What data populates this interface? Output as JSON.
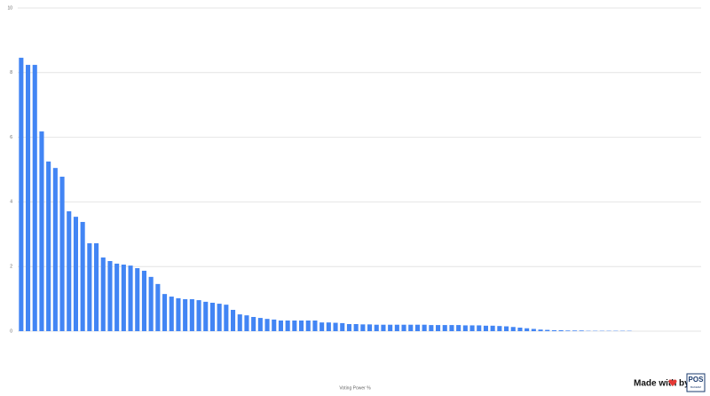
{
  "chart_data": {
    "type": "bar",
    "x_label": "Voting Power %",
    "categories": [
      null,
      null,
      null,
      null,
      null,
      null,
      null,
      null,
      null,
      null,
      null,
      null,
      null,
      null,
      null,
      null,
      null,
      null,
      null,
      null,
      null,
      null,
      null,
      null,
      null,
      null,
      null,
      null,
      null,
      null,
      null,
      null,
      null,
      null,
      null,
      null,
      null,
      null,
      null,
      null,
      null,
      null,
      null,
      null,
      null,
      null,
      null,
      null,
      null,
      null,
      null,
      null,
      null,
      null,
      null,
      null,
      null,
      null,
      null,
      null,
      null,
      null,
      null,
      null,
      null,
      null,
      null,
      null,
      null,
      null,
      null,
      null,
      null,
      null,
      null,
      null,
      null,
      null,
      null,
      null,
      null,
      null,
      null,
      null,
      null,
      null,
      null,
      null,
      null,
      null,
      null,
      null,
      null,
      null,
      null,
      null,
      null,
      null,
      null,
      null
    ],
    "values": [
      8.46,
      8.24,
      8.24,
      6.18,
      5.25,
      5.05,
      4.78,
      3.71,
      3.54,
      3.38,
      2.72,
      2.72,
      2.28,
      2.17,
      2.09,
      2.06,
      2.03,
      1.95,
      1.87,
      1.68,
      1.46,
      1.15,
      1.07,
      1.02,
      0.99,
      0.99,
      0.96,
      0.91,
      0.88,
      0.85,
      0.82,
      0.66,
      0.52,
      0.49,
      0.44,
      0.41,
      0.38,
      0.36,
      0.33,
      0.33,
      0.33,
      0.33,
      0.33,
      0.33,
      0.27,
      0.27,
      0.26,
      0.25,
      0.22,
      0.22,
      0.21,
      0.21,
      0.2,
      0.2,
      0.2,
      0.2,
      0.2,
      0.2,
      0.2,
      0.2,
      0.19,
      0.19,
      0.19,
      0.19,
      0.19,
      0.18,
      0.18,
      0.18,
      0.17,
      0.17,
      0.16,
      0.15,
      0.13,
      0.11,
      0.09,
      0.07,
      0.05,
      0.04,
      0.03,
      0.03,
      0.02,
      0.02,
      0.02,
      0.01,
      0.01,
      0.01,
      0.01,
      0.01,
      0.01,
      0.01,
      0,
      0,
      0,
      0,
      0,
      0,
      0,
      0,
      0,
      0
    ],
    "color": "#4285f4",
    "ylim": [
      0,
      10
    ],
    "yticks": [
      0,
      2,
      4,
      6,
      8,
      10
    ],
    "grid": true,
    "footer": {
      "made_with": "Made with",
      "by": "by",
      "logo_top": "POS",
      "logo_bottom": "BAKERZ"
    }
  }
}
